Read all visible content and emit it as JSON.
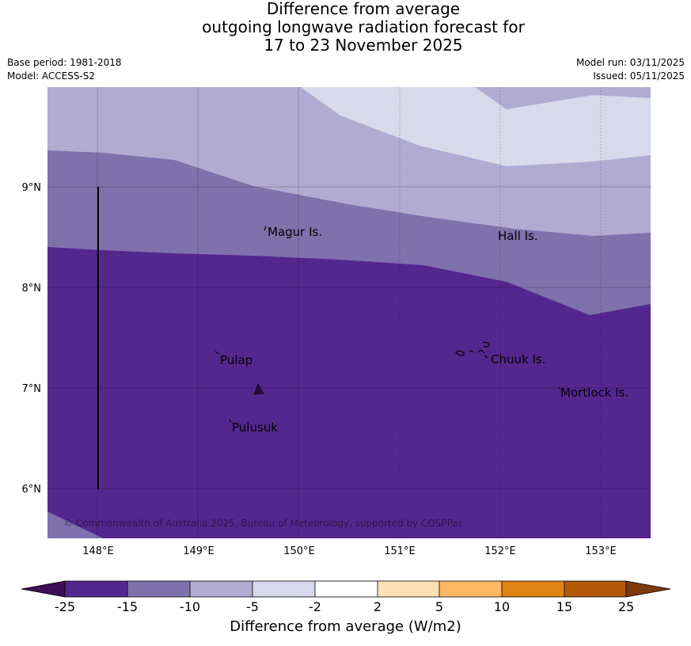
{
  "title": {
    "line1": "Difference from average",
    "line2": "outgoing longwave radiation forecast for",
    "line3": "17 to 23 November 2025"
  },
  "meta": {
    "base_period": "Base period: 1981-2018",
    "model": "Model: ACCESS-S2",
    "model_run": "Model run: 03/11/2025",
    "issued": "Issued: 05/11/2025"
  },
  "map": {
    "lon_ticks": [
      "148°E",
      "149°E",
      "150°E",
      "151°E",
      "152°E",
      "153°E"
    ],
    "lat_ticks": [
      "9°N",
      "8°N",
      "7°N",
      "6°N"
    ],
    "places": [
      {
        "name": "Magur Is."
      },
      {
        "name": "Hall Is."
      },
      {
        "name": "Pulap"
      },
      {
        "name": "Chuuk Is."
      },
      {
        "name": "Mortlock Is."
      },
      {
        "name": "Pulusuk"
      }
    ],
    "copyright": "© Commonwealth of Australia 2025, Bureau of Meteorology, supported by COSPPac"
  },
  "colorbar": {
    "label": "Difference from average (W/m2)",
    "ticks": [
      "-25",
      "-15",
      "-10",
      "-5",
      "-2",
      "2",
      "5",
      "10",
      "15",
      "25"
    ],
    "colors": {
      "below": "#3f0d56",
      "bins": [
        "#54278f",
        "#7f71ac",
        "#b1abd2",
        "#d8d9ea",
        "#ffffff",
        "#fde0b6",
        "#fdb863",
        "#e08214",
        "#b35806"
      ],
      "above": "#7f3b08"
    }
  }
}
